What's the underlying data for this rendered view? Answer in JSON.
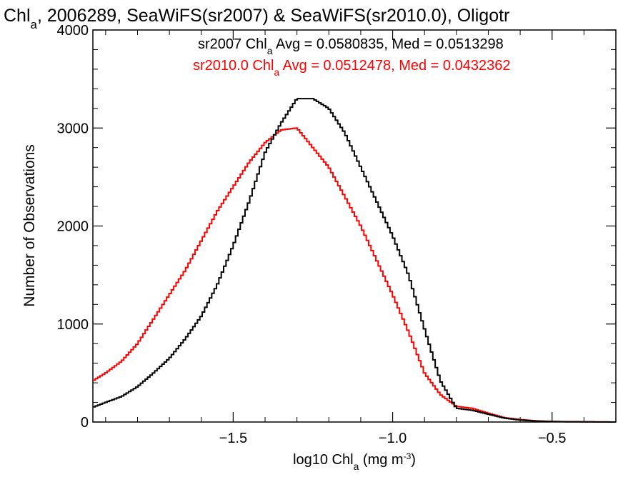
{
  "chart_data": {
    "type": "line",
    "title": {
      "pre": "Chl",
      "sub": "a",
      "post": ", 2006289, SeaWiFS(sr2007) & SeaWiFS(sr2010.0), Oligotr"
    },
    "xlabel": {
      "pre": "log10 Chl",
      "sub": "a",
      "post": " (mg m",
      "sup": "-3",
      "close": ")"
    },
    "ylabel": "Number of Observations",
    "xlim": [
      -1.94,
      -0.3
    ],
    "ylim": [
      0,
      4000
    ],
    "xticks": [
      {
        "value": -1.5,
        "label": "−1.5"
      },
      {
        "value": -1.0,
        "label": "−1.0"
      },
      {
        "value": -0.5,
        "label": "−0.5"
      }
    ],
    "yticks": [
      {
        "value": 0,
        "label": "0"
      },
      {
        "value": 1000,
        "label": "1000"
      },
      {
        "value": 2000,
        "label": "2000"
      },
      {
        "value": 3000,
        "label": "3000"
      },
      {
        "value": 4000,
        "label": "4000"
      }
    ],
    "grid": false,
    "legend_placement": "top-right",
    "series": [
      {
        "name": "sr2007",
        "color": "#000000",
        "annotation": {
          "pre": "sr2007 Chl",
          "sub": "a",
          "post": " Avg = 0.0580835, Med = 0.0513298"
        },
        "points": [
          [
            -1.94,
            150
          ],
          [
            -1.9,
            200
          ],
          [
            -1.85,
            260
          ],
          [
            -1.8,
            360
          ],
          [
            -1.75,
            500
          ],
          [
            -1.7,
            650
          ],
          [
            -1.65,
            850
          ],
          [
            -1.6,
            1080
          ],
          [
            -1.55,
            1400
          ],
          [
            -1.5,
            1800
          ],
          [
            -1.45,
            2250
          ],
          [
            -1.4,
            2750
          ],
          [
            -1.35,
            3050
          ],
          [
            -1.3,
            3300
          ],
          [
            -1.25,
            3300
          ],
          [
            -1.2,
            3200
          ],
          [
            -1.15,
            2950
          ],
          [
            -1.1,
            2600
          ],
          [
            -1.05,
            2250
          ],
          [
            -1.0,
            1900
          ],
          [
            -0.95,
            1500
          ],
          [
            -0.9,
            950
          ],
          [
            -0.85,
            420
          ],
          [
            -0.8,
            140
          ],
          [
            -0.75,
            120
          ],
          [
            -0.7,
            80
          ],
          [
            -0.65,
            40
          ],
          [
            -0.6,
            20
          ],
          [
            -0.55,
            10
          ],
          [
            -0.5,
            5
          ],
          [
            -0.45,
            3
          ],
          [
            -0.4,
            2
          ],
          [
            -0.35,
            1
          ],
          [
            -0.3,
            0
          ]
        ]
      },
      {
        "name": "sr2010.0",
        "color": "#ff0000",
        "annotation": {
          "pre": "sr2010.0 Chl",
          "sub": "a",
          "post": " Avg = 0.0512478, Med = 0.0432362"
        },
        "points": [
          [
            -1.94,
            420
          ],
          [
            -1.9,
            500
          ],
          [
            -1.85,
            620
          ],
          [
            -1.8,
            800
          ],
          [
            -1.75,
            1050
          ],
          [
            -1.7,
            1300
          ],
          [
            -1.65,
            1550
          ],
          [
            -1.6,
            1850
          ],
          [
            -1.55,
            2150
          ],
          [
            -1.5,
            2400
          ],
          [
            -1.45,
            2650
          ],
          [
            -1.4,
            2850
          ],
          [
            -1.35,
            2980
          ],
          [
            -1.3,
            3000
          ],
          [
            -1.25,
            2800
          ],
          [
            -1.2,
            2600
          ],
          [
            -1.15,
            2300
          ],
          [
            -1.1,
            2000
          ],
          [
            -1.05,
            1650
          ],
          [
            -1.0,
            1300
          ],
          [
            -0.95,
            920
          ],
          [
            -0.9,
            500
          ],
          [
            -0.85,
            280
          ],
          [
            -0.8,
            160
          ],
          [
            -0.75,
            140
          ],
          [
            -0.7,
            90
          ],
          [
            -0.65,
            45
          ],
          [
            -0.6,
            25
          ],
          [
            -0.55,
            12
          ],
          [
            -0.5,
            6
          ],
          [
            -0.45,
            3
          ],
          [
            -0.4,
            2
          ],
          [
            -0.35,
            1
          ],
          [
            -0.3,
            0
          ]
        ]
      }
    ]
  }
}
